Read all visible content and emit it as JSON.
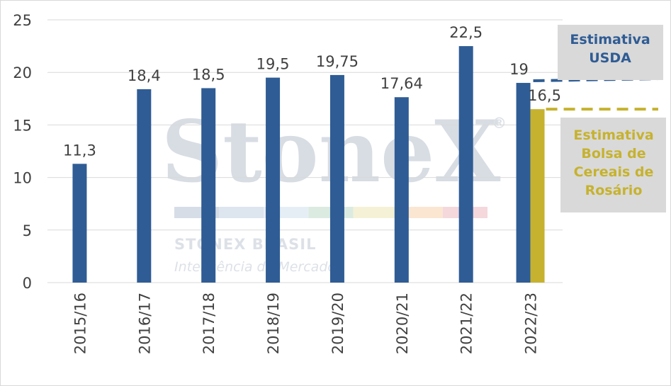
{
  "chart_data": {
    "type": "bar",
    "categories": [
      "2015/16",
      "2016/17",
      "2017/18",
      "2018/19",
      "2019/20",
      "2020/21",
      "2021/22",
      "2022/23"
    ],
    "series": [
      {
        "color": "#2f5c94",
        "values": [
          11.3,
          18.4,
          18.5,
          19.5,
          19.75,
          17.64,
          22.5,
          19
        ]
      },
      {
        "color": "#c6b22e",
        "values": [
          null,
          null,
          null,
          null,
          null,
          null,
          null,
          16.5
        ]
      }
    ],
    "data_labels": [
      "11,3",
      "18,4",
      "18,5",
      "19,5",
      "19,75",
      "17,64",
      "22,5",
      "19",
      "16,5"
    ],
    "ylim": [
      0,
      25
    ],
    "yticks": [
      0,
      5,
      10,
      15,
      20,
      25
    ],
    "xlabel": "",
    "ylabel": "",
    "grid": true,
    "reference_lines": [
      {
        "label": "Estimativa USDA",
        "value": 19,
        "color": "#2f5c94",
        "style": "dashed"
      },
      {
        "label": "Estimativa Bolsa de Cereais de Rosário",
        "value": 16.5,
        "color": "#c6b22e",
        "style": "dashed"
      }
    ]
  },
  "callouts": {
    "usda": {
      "lines": [
        "Estimativa",
        "USDA"
      ],
      "color": "#2f5c94"
    },
    "rosario": {
      "lines": [
        "Estimativa",
        "Bolsa de",
        "Cereais de",
        "Rosário"
      ],
      "color": "#c6b22e"
    }
  },
  "watermark": {
    "brand": "StoneX",
    "subtitle": "STONEX BRASIL",
    "tagline": "Inteligência de Mercado",
    "stripe_colors": [
      "#d7dde6",
      "#dde5ee",
      "#e6eef5",
      "#dcebe1",
      "#f4f1d6",
      "#fbe6d2",
      "#f4d8dc"
    ]
  }
}
